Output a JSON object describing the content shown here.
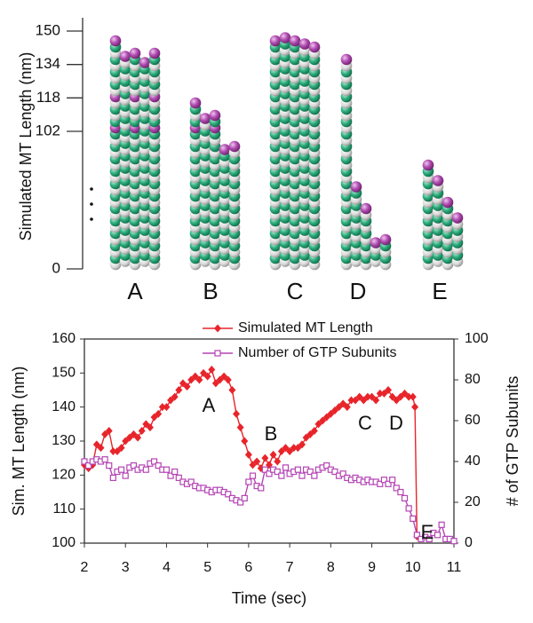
{
  "chart_data": [
    {
      "type": "illustration",
      "y_label": "Simulated MT Length (nm)",
      "categories": [
        "A",
        "B",
        "C",
        "D",
        "E"
      ],
      "ylim": [
        0,
        150
      ],
      "yticks": [
        150,
        134,
        118,
        102,
        0
      ]
    },
    {
      "type": "line",
      "y_label": "Sim. MT Length (nm)",
      "y2_label": "# of GTP Subunits",
      "x_label": "Time (sec)",
      "xlim": [
        2,
        11
      ],
      "xticks": [
        2,
        3,
        4,
        5,
        6,
        7,
        8,
        9,
        10,
        11
      ],
      "ylim": [
        100,
        160
      ],
      "yticks": [
        100,
        110,
        120,
        130,
        140,
        150,
        160
      ],
      "y2lim": [
        0,
        100
      ],
      "y2ticks": [
        0,
        20,
        40,
        60,
        80,
        100
      ],
      "legend": "top",
      "annotations": [
        "A",
        "B",
        "C",
        "D",
        "E"
      ],
      "series": [
        {
          "name": "Simulated MT Length",
          "color": "#e8242b",
          "marker": "diamond",
          "x": [
            2.0,
            2.1,
            2.2,
            2.3,
            2.4,
            2.5,
            2.6,
            2.7,
            2.8,
            2.9,
            3.0,
            3.1,
            3.2,
            3.3,
            3.4,
            3.5,
            3.6,
            3.7,
            3.8,
            3.9,
            4.0,
            4.1,
            4.2,
            4.3,
            4.4,
            4.5,
            4.6,
            4.7,
            4.8,
            4.9,
            5.0,
            5.1,
            5.2,
            5.3,
            5.4,
            5.5,
            5.6,
            5.7,
            5.8,
            5.9,
            6.0,
            6.1,
            6.2,
            6.3,
            6.4,
            6.5,
            6.6,
            6.7,
            6.8,
            6.9,
            7.0,
            7.1,
            7.2,
            7.3,
            7.4,
            7.5,
            7.6,
            7.7,
            7.8,
            7.9,
            8.0,
            8.1,
            8.2,
            8.3,
            8.4,
            8.5,
            8.6,
            8.7,
            8.8,
            8.9,
            9.0,
            9.1,
            9.2,
            9.3,
            9.4,
            9.5,
            9.6,
            9.7,
            9.8,
            9.9,
            10.0,
            10.05,
            10.1
          ],
          "values": [
            123,
            122,
            123,
            129,
            128,
            132,
            133,
            127,
            127,
            128,
            130,
            131,
            132,
            131,
            133,
            135,
            134,
            137,
            138,
            140,
            140,
            142,
            143,
            145,
            147,
            146,
            148,
            149,
            148,
            150,
            149,
            151,
            147,
            148,
            149,
            148,
            145,
            138,
            134,
            130,
            126,
            123,
            124,
            122,
            125,
            123,
            126,
            124,
            127,
            128,
            127,
            128,
            128,
            129,
            131,
            132,
            133,
            135,
            136,
            137,
            138,
            139,
            140,
            141,
            140,
            142,
            142,
            143,
            142,
            143,
            143,
            142,
            144,
            144,
            145,
            143,
            142,
            143,
            144,
            143,
            143,
            140,
            102
          ]
        },
        {
          "name": "Number of GTP Subunits",
          "color": "#b445b4",
          "marker": "square",
          "axis": "y2",
          "x": [
            2.0,
            2.1,
            2.2,
            2.3,
            2.4,
            2.5,
            2.6,
            2.7,
            2.8,
            2.9,
            3.0,
            3.1,
            3.2,
            3.3,
            3.4,
            3.5,
            3.6,
            3.7,
            3.8,
            3.9,
            4.0,
            4.1,
            4.2,
            4.3,
            4.4,
            4.5,
            4.6,
            4.7,
            4.8,
            4.9,
            5.0,
            5.1,
            5.2,
            5.3,
            5.4,
            5.5,
            5.6,
            5.7,
            5.8,
            5.9,
            6.0,
            6.1,
            6.2,
            6.3,
            6.4,
            6.5,
            6.6,
            6.7,
            6.8,
            6.9,
            7.0,
            7.1,
            7.2,
            7.3,
            7.4,
            7.5,
            7.6,
            7.7,
            7.8,
            7.9,
            8.0,
            8.1,
            8.2,
            8.3,
            8.4,
            8.5,
            8.6,
            8.7,
            8.8,
            8.9,
            9.0,
            9.1,
            9.2,
            9.3,
            9.4,
            9.5,
            9.6,
            9.7,
            9.8,
            9.9,
            10.0,
            10.1,
            10.2,
            10.3,
            10.4,
            10.5,
            10.6,
            10.7,
            10.8,
            10.9,
            11.0
          ],
          "values": [
            40,
            38,
            40,
            41,
            40,
            41,
            38,
            32,
            35,
            36,
            33,
            37,
            38,
            36,
            37,
            36,
            39,
            40,
            38,
            36,
            36,
            33,
            35,
            32,
            30,
            29,
            30,
            28,
            27,
            27,
            26,
            25,
            26,
            26,
            25,
            24,
            22,
            21,
            20,
            22,
            30,
            33,
            28,
            27,
            36,
            34,
            36,
            35,
            33,
            37,
            34,
            35,
            36,
            33,
            36,
            35,
            33,
            36,
            37,
            38,
            36,
            35,
            33,
            34,
            32,
            31,
            32,
            31,
            30,
            31,
            30,
            30,
            29,
            31,
            29,
            31,
            27,
            25,
            22,
            17,
            12,
            4,
            2,
            3,
            2,
            5,
            4,
            9,
            2,
            2,
            1
          ]
        }
      ]
    }
  ]
}
